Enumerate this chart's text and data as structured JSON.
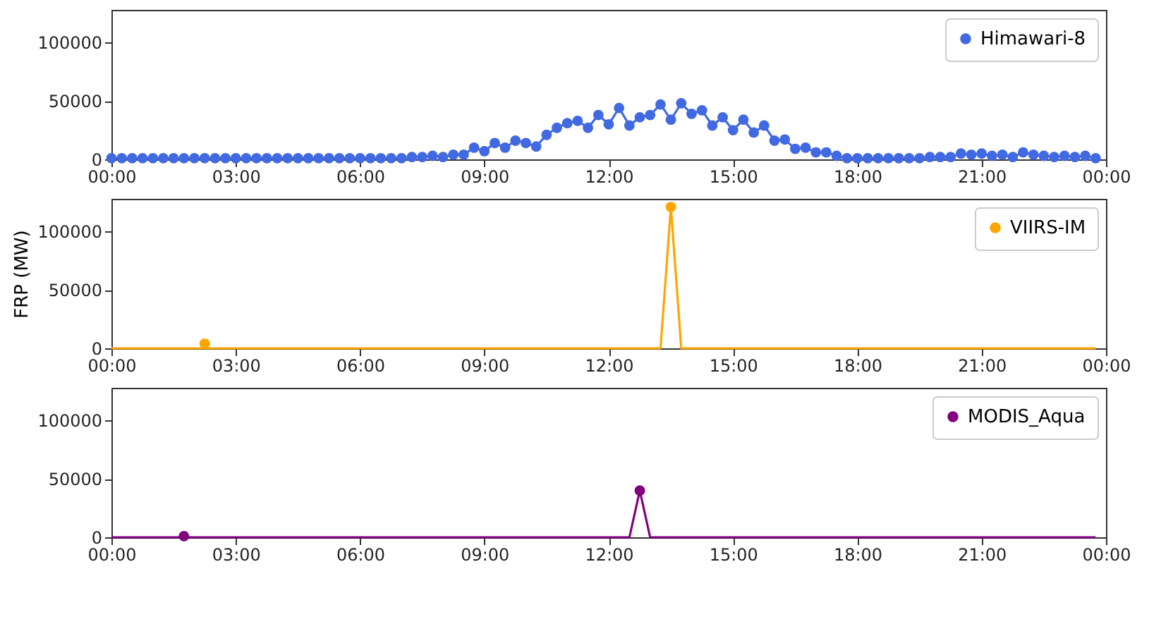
{
  "chart_data": [
    {
      "type": "line",
      "xlim": [
        0,
        24
      ],
      "xticks": [
        {
          "value": 0,
          "label": "00:00"
        },
        {
          "value": 3,
          "label": "03:00"
        },
        {
          "value": 6,
          "label": "06:00"
        },
        {
          "value": 9,
          "label": "09:00"
        },
        {
          "value": 12,
          "label": "12:00"
        },
        {
          "value": 15,
          "label": "15:00"
        },
        {
          "value": 18,
          "label": "18:00"
        },
        {
          "value": 21,
          "label": "21:00"
        },
        {
          "value": 24,
          "label": "00:00"
        }
      ],
      "ylim": [
        0,
        128000
      ],
      "yticks": [
        0,
        50000,
        100000
      ],
      "grid": false,
      "legend": "top right",
      "marker": "circle",
      "x": [
        0,
        0.25,
        0.5,
        0.75,
        1,
        1.25,
        1.5,
        1.75,
        2,
        2.25,
        2.5,
        2.75,
        3,
        3.25,
        3.5,
        3.75,
        4,
        4.25,
        4.5,
        4.75,
        5,
        5.25,
        5.5,
        5.75,
        6,
        6.25,
        6.5,
        6.75,
        7,
        7.25,
        7.5,
        7.75,
        8,
        8.25,
        8.5,
        8.75,
        9,
        9.25,
        9.5,
        9.75,
        10,
        10.25,
        10.5,
        10.75,
        11,
        11.25,
        11.5,
        11.75,
        12,
        12.25,
        12.5,
        12.75,
        13,
        13.25,
        13.5,
        13.75,
        14,
        14.25,
        14.5,
        14.75,
        15,
        15.25,
        15.5,
        15.75,
        16,
        16.25,
        16.5,
        16.75,
        17,
        17.25,
        17.5,
        17.75,
        18,
        18.25,
        18.5,
        18.75,
        19,
        19.25,
        19.5,
        19.75,
        20,
        20.25,
        20.5,
        20.75,
        21,
        21.25,
        21.5,
        21.75,
        22,
        22.25,
        22.5,
        22.75,
        23,
        23.25,
        23.5,
        23.75
      ],
      "series": [
        {
          "name": "Himawari-8",
          "color": "#4169e1",
          "values": [
            1000,
            1000,
            1000,
            1000,
            1000,
            1000,
            1000,
            1000,
            1000,
            1000,
            1000,
            1000,
            1000,
            1000,
            1000,
            1000,
            1000,
            1000,
            1000,
            1000,
            1000,
            1000,
            1000,
            1000,
            1000,
            1000,
            1000,
            1000,
            1000,
            2000,
            2000,
            3000,
            2000,
            4000,
            4000,
            10000,
            7000,
            14000,
            10000,
            16000,
            14000,
            11000,
            21000,
            27000,
            31000,
            33000,
            27000,
            38000,
            30000,
            44000,
            29000,
            36000,
            38000,
            47000,
            34000,
            48000,
            39000,
            42000,
            29000,
            36000,
            25000,
            34000,
            23000,
            29000,
            16000,
            17000,
            9000,
            10000,
            6000,
            6000,
            3000,
            1000,
            1000,
            1000,
            1000,
            1000,
            1000,
            1000,
            1000,
            2000,
            2000,
            2000,
            5000,
            4000,
            5000,
            3000,
            4000,
            2000,
            6000,
            4000,
            3000,
            2000,
            3000,
            2000,
            3000,
            1000
          ]
        }
      ]
    },
    {
      "type": "line",
      "xlim": [
        0,
        24
      ],
      "xticks": [
        {
          "value": 0,
          "label": "00:00"
        },
        {
          "value": 3,
          "label": "03:00"
        },
        {
          "value": 6,
          "label": "06:00"
        },
        {
          "value": 9,
          "label": "09:00"
        },
        {
          "value": 12,
          "label": "12:00"
        },
        {
          "value": 15,
          "label": "15:00"
        },
        {
          "value": 18,
          "label": "18:00"
        },
        {
          "value": 21,
          "label": "21:00"
        },
        {
          "value": 24,
          "label": "00:00"
        }
      ],
      "ylim": [
        0,
        128000
      ],
      "yticks": [
        0,
        50000,
        100000
      ],
      "ylabel": "FRP (MW)",
      "grid": false,
      "legend": "top right",
      "series": [
        {
          "color": "#ffa500",
          "x": [
            0,
            13.25,
            13.5,
            13.75,
            23.75
          ],
          "values": [
            0,
            0,
            121000,
            0,
            0
          ]
        },
        {
          "type": "scatter",
          "name": "VIIRS-IM",
          "color": "#ffa500",
          "x": [
            2.25,
            13.5
          ],
          "values": [
            4000,
            121000
          ]
        }
      ]
    },
    {
      "type": "line",
      "xlim": [
        0,
        24
      ],
      "xticks": [
        {
          "value": 0,
          "label": "00:00"
        },
        {
          "value": 3,
          "label": "03:00"
        },
        {
          "value": 6,
          "label": "06:00"
        },
        {
          "value": 9,
          "label": "09:00"
        },
        {
          "value": 12,
          "label": "12:00"
        },
        {
          "value": 15,
          "label": "15:00"
        },
        {
          "value": 18,
          "label": "18:00"
        },
        {
          "value": 21,
          "label": "21:00"
        },
        {
          "value": 24,
          "label": "00:00"
        }
      ],
      "ylim": [
        0,
        128000
      ],
      "yticks": [
        0,
        50000,
        100000
      ],
      "grid": false,
      "legend": "top right",
      "series": [
        {
          "color": "#800080",
          "x": [
            0,
            12.5,
            12.75,
            13,
            23.75
          ],
          "values": [
            0,
            0,
            40000,
            0,
            0
          ]
        },
        {
          "type": "scatter",
          "name": "MODIS_Aqua",
          "color": "#800080",
          "x": [
            1.75,
            12.75
          ],
          "values": [
            1000,
            40000
          ]
        }
      ]
    }
  ]
}
